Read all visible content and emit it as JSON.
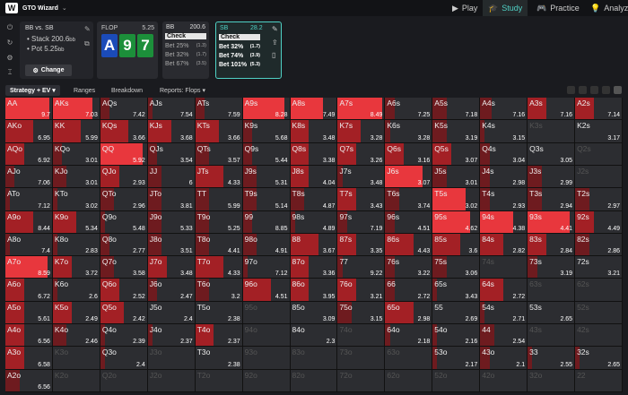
{
  "app": {
    "name": "GTO Wizard"
  },
  "nav": [
    {
      "label": "Play",
      "icon": "play-icon"
    },
    {
      "label": "Study",
      "icon": "graduation-cap-icon",
      "active": true
    },
    {
      "label": "Practice",
      "icon": "gamepad-icon"
    },
    {
      "label": "Analyze",
      "icon": "bulb-icon"
    }
  ],
  "spot": {
    "title": "BB vs. SB",
    "stack": "Stack 200.6",
    "stack_unit": "bb",
    "pot": "Pot 5.25",
    "pot_unit": "bb",
    "change": "Change"
  },
  "flop": {
    "label": "FLOP",
    "pot": "5.25",
    "cards": [
      {
        "rank": "A",
        "color": "#1b4bb8"
      },
      {
        "rank": "9",
        "color": "#1c8f3a"
      },
      {
        "rank": "7",
        "color": "#1c8f3a"
      }
    ]
  },
  "actions": [
    {
      "player": "BB",
      "stack": "200.6",
      "rows": [
        {
          "label": "Check",
          "freq": ""
        },
        {
          "label": "Bet 25%",
          "freq": "(1.3)"
        },
        {
          "label": "Bet 32%",
          "freq": "(1.7)"
        },
        {
          "label": "Bet 67%",
          "freq": "(3.5)"
        }
      ]
    },
    {
      "player": "SB",
      "stack": "28.2",
      "rows": [
        {
          "label": "Check",
          "freq": ""
        },
        {
          "label": "Bet 32%",
          "freq": "(1.7)"
        },
        {
          "label": "Bet 74%",
          "freq": "(3.9)"
        },
        {
          "label": "Bet 101%",
          "freq": "(5.3)"
        }
      ],
      "selected": true
    }
  ],
  "tabs": [
    "Strategy + EV",
    "Ranges",
    "Breakdown",
    "Reports: Flops"
  ],
  "colors": {
    "accent": "#4fd1c5",
    "fill_strong": "#e8373d",
    "fill_mid": "#a32025",
    "fill_dark": "#6e1b1f"
  },
  "grid": [
    [
      [
        "AA",
        "9.7",
        0.95
      ],
      [
        "AKs",
        "7.03",
        0.85
      ],
      [
        "AQs",
        "7.42",
        0.2
      ],
      [
        "AJs",
        "7.54",
        0.1
      ],
      [
        "ATs",
        "7.59",
        0.2
      ],
      [
        "A9s",
        "8.28",
        0.9
      ],
      [
        "A8s",
        "7.49",
        0.7
      ],
      [
        "A7s",
        "8.49",
        0.95
      ],
      [
        "A6s",
        "7.25",
        0.2
      ],
      [
        "A5s",
        "7.18",
        0.3
      ],
      [
        "A4s",
        "7.16",
        0.25
      ],
      [
        "A3s",
        "7.16",
        0.4
      ],
      [
        "A2s",
        "7.14",
        0.4
      ]
    ],
    [
      [
        "AKo",
        "6.95",
        0.6
      ],
      [
        "KK",
        "5.99",
        0.6
      ],
      [
        "KQs",
        "3.66",
        0.6
      ],
      [
        "KJs",
        "3.68",
        0.5
      ],
      [
        "KTs",
        "3.66",
        0.5
      ],
      [
        "K9s",
        "5.68",
        0.2
      ],
      [
        "K8s",
        "3.48",
        0.4
      ],
      [
        "K7s",
        "3.28",
        0.5
      ],
      [
        "K6s",
        "3.28",
        0.1
      ],
      [
        "K5s",
        "3.19",
        0.3
      ],
      [
        "K4s",
        "3.15",
        0.1
      ],
      [
        "K3s",
        "",
        0
      ],
      [
        "K2s",
        "3.17",
        0
      ]
    ],
    [
      [
        "AQo",
        "6.92",
        0.4
      ],
      [
        "KQo",
        "3.01",
        0.2
      ],
      [
        "QQ",
        "5.92",
        0.9
      ],
      [
        "QJs",
        "3.54",
        0.2
      ],
      [
        "QTs",
        "3.57",
        0.3
      ],
      [
        "Q9s",
        "5.44",
        0.2
      ],
      [
        "Q8s",
        "3.38",
        0.4
      ],
      [
        "Q7s",
        "3.26",
        0.4
      ],
      [
        "Q6s",
        "3.16",
        0.4
      ],
      [
        "Q5s",
        "3.07",
        0.4
      ],
      [
        "Q4s",
        "3.04",
        0.2
      ],
      [
        "Q3s",
        "3.05",
        0
      ],
      [
        "Q2s",
        "",
        0
      ]
    ],
    [
      [
        "AJo",
        "7.06",
        0.2
      ],
      [
        "KJo",
        "3.01",
        0.3
      ],
      [
        "QJo",
        "2.93",
        0.4
      ],
      [
        "JJ",
        "6",
        0.3
      ],
      [
        "JTs",
        "4.33",
        0.6
      ],
      [
        "J9s",
        "5.31",
        0.3
      ],
      [
        "J8s",
        "4.04",
        0.4
      ],
      [
        "J7s",
        "3.48",
        0.1
      ],
      [
        "J6s",
        "3.07",
        0.8
      ],
      [
        "J5s",
        "3.01",
        0.3
      ],
      [
        "J4s",
        "2.98",
        0.2
      ],
      [
        "J3s",
        "2.99",
        0.3
      ],
      [
        "J2s",
        "",
        0
      ]
    ],
    [
      [
        "ATo",
        "7.12",
        0.1
      ],
      [
        "KTo",
        "3.02",
        0.1
      ],
      [
        "QTo",
        "2.96",
        0.3
      ],
      [
        "JTo",
        "3.81",
        0.3
      ],
      [
        "TT",
        "5.99",
        0.3
      ],
      [
        "T9s",
        "5.14",
        0.3
      ],
      [
        "T8s",
        "4.87",
        0.3
      ],
      [
        "T7s",
        "3.43",
        0.4
      ],
      [
        "T6s",
        "3.74",
        0.3
      ],
      [
        "T5s",
        "3.02",
        0.7
      ],
      [
        "T4s",
        "2.93",
        0.2
      ],
      [
        "T3s",
        "2.94",
        0.3
      ],
      [
        "T2s",
        "2.97",
        0.3
      ]
    ],
    [
      [
        "A9o",
        "8.44",
        0.6
      ],
      [
        "K9o",
        "5.34",
        0.5
      ],
      [
        "Q9o",
        "5.48",
        0.1
      ],
      [
        "J9o",
        "5.33",
        0.3
      ],
      [
        "T9o",
        "5.25",
        0.3
      ],
      [
        "99",
        "8.85",
        0.2
      ],
      [
        "98s",
        "4.89",
        0.1
      ],
      [
        "97s",
        "7.19",
        0.2
      ],
      [
        "96s",
        "4.51",
        0.2
      ],
      [
        "95s",
        "4.62",
        0.8
      ],
      [
        "94s",
        "4.38",
        0.7
      ],
      [
        "93s",
        "4.41",
        0.9
      ],
      [
        "92s",
        "4.49",
        0.4
      ]
    ],
    [
      [
        "A8o",
        "7.4",
        0.1
      ],
      [
        "K8o",
        "2.83",
        0.1
      ],
      [
        "Q8o",
        "2.77",
        0.2
      ],
      [
        "J8o",
        "3.51",
        0.3
      ],
      [
        "T8o",
        "4.41",
        0.3
      ],
      [
        "98o",
        "4.91",
        0.3
      ],
      [
        "88",
        "3.67",
        0.6
      ],
      [
        "87s",
        "3.35",
        0.4
      ],
      [
        "86s",
        "4.43",
        0.6
      ],
      [
        "85s",
        "3.6",
        0.6
      ],
      [
        "84s",
        "2.82",
        0.5
      ],
      [
        "83s",
        "2.84",
        0.4
      ],
      [
        "82s",
        "2.86",
        0.3
      ]
    ],
    [
      [
        "A7o",
        "8.59",
        0.9
      ],
      [
        "K7o",
        "3.72",
        0.4
      ],
      [
        "Q7o",
        "3.58",
        0.3
      ],
      [
        "J7o",
        "3.48",
        0.4
      ],
      [
        "T7o",
        "4.33",
        0.6
      ],
      [
        "97o",
        "7.12",
        0.1
      ],
      [
        "87o",
        "3.36",
        0.4
      ],
      [
        "77",
        "9.22",
        0.1
      ],
      [
        "76s",
        "3.22",
        0.2
      ],
      [
        "75s",
        "3.06",
        0.3
      ],
      [
        "74s",
        "",
        0
      ],
      [
        "73s",
        "3.19",
        0.2
      ],
      [
        "72s",
        "3.21",
        0
      ]
    ],
    [
      [
        "A6o",
        "6.72",
        0.4
      ],
      [
        "K6o",
        "2.6",
        0.1
      ],
      [
        "Q6o",
        "2.52",
        0.4
      ],
      [
        "J6o",
        "2.47",
        0.2
      ],
      [
        "T6o",
        "3.2",
        0.3
      ],
      [
        "96o",
        "4.51",
        0.6
      ],
      [
        "86o",
        "3.95",
        0.4
      ],
      [
        "76o",
        "3.21",
        0.4
      ],
      [
        "66",
        "2.72",
        0.2
      ],
      [
        "65s",
        "3.43",
        0.1
      ],
      [
        "64s",
        "2.72",
        0.5
      ],
      [
        "63s",
        "",
        0
      ],
      [
        "62s",
        "",
        0
      ]
    ],
    [
      [
        "A5o",
        "5.61",
        0.4
      ],
      [
        "K5o",
        "2.49",
        0.4
      ],
      [
        "Q5o",
        "2.42",
        0.5
      ],
      [
        "J5o",
        "2.4",
        0
      ],
      [
        "T5o",
        "2.38",
        0
      ],
      [
        "95o",
        "",
        0
      ],
      [
        "85o",
        "3.09",
        0
      ],
      [
        "75o",
        "3.15",
        0.3
      ],
      [
        "65o",
        "2.98",
        0.6
      ],
      [
        "55",
        "2.69",
        0
      ],
      [
        "54s",
        "2.71",
        0.1
      ],
      [
        "53s",
        "2.65",
        0
      ],
      [
        "52s",
        "",
        0
      ]
    ],
    [
      [
        "A4o",
        "6.56",
        0.4
      ],
      [
        "K4o",
        "2.46",
        0.3
      ],
      [
        "Q4o",
        "2.39",
        0.1
      ],
      [
        "J4o",
        "2.37",
        0.1
      ],
      [
        "T4o",
        "2.37",
        0.4
      ],
      [
        "94o",
        "",
        0
      ],
      [
        "84o",
        "2.3",
        0
      ],
      [
        "74o",
        "",
        0
      ],
      [
        "64o",
        "2.18",
        0.1
      ],
      [
        "54o",
        "2.16",
        0.1
      ],
      [
        "44",
        "2.54",
        0.3
      ],
      [
        "43s",
        "",
        0
      ],
      [
        "42s",
        "",
        0
      ]
    ],
    [
      [
        "A3o",
        "6.58",
        0.4
      ],
      [
        "K3o",
        "",
        0
      ],
      [
        "Q3o",
        "2.4",
        0.1
      ],
      [
        "J3o",
        "",
        0
      ],
      [
        "T3o",
        "2.38",
        0
      ],
      [
        "93o",
        "",
        0
      ],
      [
        "83o",
        "",
        0
      ],
      [
        "73o",
        "",
        0
      ],
      [
        "63o",
        "",
        0
      ],
      [
        "53o",
        "2.17",
        0.1
      ],
      [
        "43o",
        "2.1",
        0.2
      ],
      [
        "33",
        "2.55",
        0.1
      ],
      [
        "32s",
        "2.65",
        0.1
      ]
    ],
    [
      [
        "A2o",
        "6.56",
        0.3
      ],
      [
        "K2o",
        "",
        0
      ],
      [
        "Q2o",
        "",
        0
      ],
      [
        "J2o",
        "",
        0
      ],
      [
        "T2o",
        "",
        0
      ],
      [
        "92o",
        "",
        0
      ],
      [
        "82o",
        "",
        0
      ],
      [
        "72o",
        "",
        0
      ],
      [
        "62o",
        "",
        0
      ],
      [
        "52o",
        "",
        0
      ],
      [
        "42o",
        "",
        0
      ],
      [
        "32o",
        "",
        0
      ],
      [
        "22",
        "",
        0
      ]
    ]
  ]
}
